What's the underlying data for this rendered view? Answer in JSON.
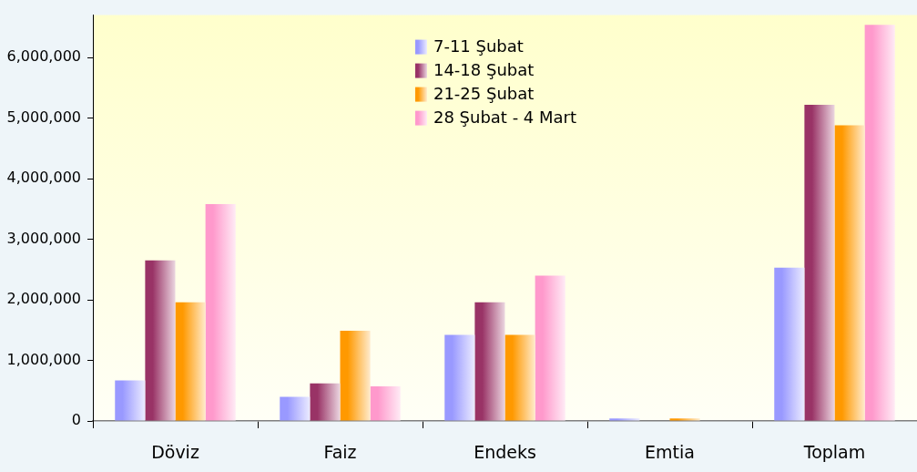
{
  "chart_data": {
    "type": "bar",
    "categories": [
      "Döviz",
      "Faiz",
      "Endeks",
      "Emtia",
      "Toplam"
    ],
    "series": [
      {
        "name": "7-11 Şubat",
        "color": "#9999ff",
        "values": [
          670000,
          400000,
          1420000,
          40000,
          2530000
        ]
      },
      {
        "name": "14-18 Şubat",
        "color": "#993366",
        "values": [
          2650000,
          620000,
          1960000,
          null,
          5220000
        ]
      },
      {
        "name": "21-25 Şubat",
        "color": "#ff9900",
        "values": [
          1960000,
          1490000,
          1420000,
          40000,
          4880000
        ]
      },
      {
        "name": "28 Şubat - 4 Mart",
        "color": "#ff99cc",
        "values": [
          3580000,
          570000,
          2400000,
          null,
          6540000
        ]
      }
    ],
    "ylim": [
      0,
      6700000
    ],
    "yticks": [
      {
        "value": 0,
        "label": "0"
      },
      {
        "value": 1000000,
        "label": "1,000,000"
      },
      {
        "value": 2000000,
        "label": "2,000,000"
      },
      {
        "value": 3000000,
        "label": "3,000,000"
      },
      {
        "value": 4000000,
        "label": "4,000,000"
      },
      {
        "value": 5000000,
        "label": "5,000,000"
      },
      {
        "value": 6000000,
        "label": "6,000,000"
      }
    ],
    "legend": "top"
  }
}
